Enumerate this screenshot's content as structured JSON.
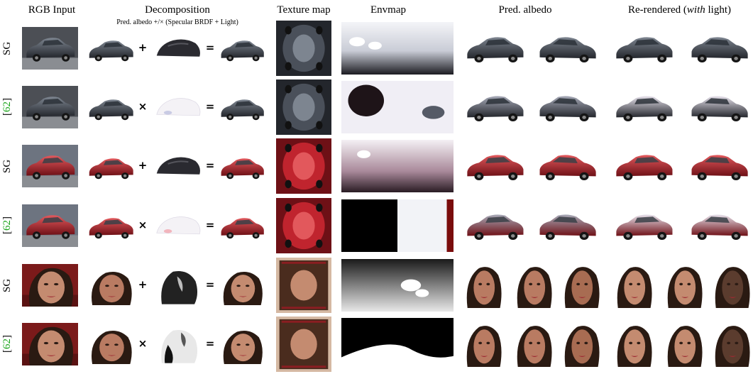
{
  "headers": {
    "rgb_input": "RGB Input",
    "decomposition": "Decomposition",
    "decomposition_sub": "Pred. albedo +/× (Specular BRDF + Light)",
    "texture_map": "Texture map",
    "envmap": "Envmap",
    "pred_albedo": "Pred. albedo",
    "rerendered_prefix": "Re-rendered (",
    "rerendered_em": "with",
    "rerendered_suffix": " light)"
  },
  "rows": [
    {
      "label": "SG",
      "cite": "",
      "op": "+",
      "eq": "=",
      "subject": "car-dark",
      "variant": "sg"
    },
    {
      "label": "[",
      "cite": "62",
      "label_end": "]",
      "op": "×",
      "eq": "=",
      "subject": "car-dark",
      "variant": "ref"
    },
    {
      "label": "SG",
      "cite": "",
      "op": "+",
      "eq": "=",
      "subject": "car-red",
      "variant": "sg"
    },
    {
      "label": "[",
      "cite": "62",
      "label_end": "]",
      "op": "×",
      "eq": "=",
      "subject": "car-red",
      "variant": "ref"
    },
    {
      "label": "SG",
      "cite": "",
      "op": "+",
      "eq": "=",
      "subject": "face",
      "variant": "sg"
    },
    {
      "label": "[",
      "cite": "62",
      "label_end": "]",
      "op": "×",
      "eq": "=",
      "subject": "face",
      "variant": "ref"
    }
  ],
  "colors": {
    "cite_green": "#19a319",
    "car_dark": "#4a505a",
    "car_red": "#c0242e",
    "skin": "#b97b62"
  }
}
